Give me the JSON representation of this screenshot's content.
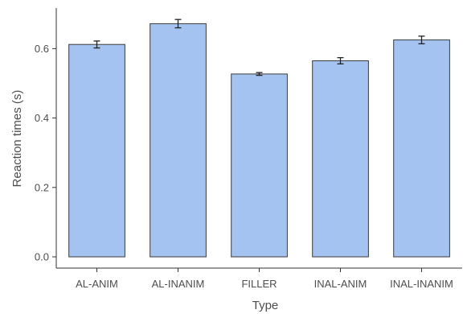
{
  "chart_data": {
    "type": "bar",
    "title": "",
    "xlabel": "Type",
    "ylabel": "Reaction times (s)",
    "categories": [
      "AL-ANIM",
      "AL-INANIM",
      "FILLER",
      "INAL-ANIM",
      "INAL-INANIM"
    ],
    "values": [
      0.612,
      0.672,
      0.527,
      0.565,
      0.625
    ],
    "errors": [
      0.01,
      0.012,
      0.004,
      0.009,
      0.011
    ],
    "ylim": [
      0,
      0.72
    ],
    "yticks": [
      0.0,
      0.2,
      0.4,
      0.6
    ],
    "ytick_labels": [
      "0.0",
      "0.2",
      "0.4",
      "0.6"
    ],
    "grid": false,
    "legend": "none",
    "colors": {
      "bar_fill": "#a4c3f1",
      "bar_stroke": "#3a3a3a",
      "axis": "#333333"
    }
  }
}
